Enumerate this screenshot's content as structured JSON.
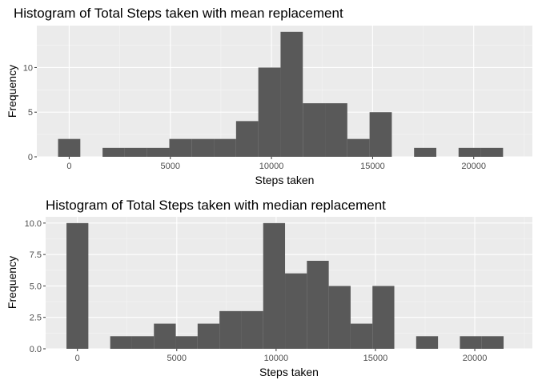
{
  "colors": {
    "panel": "#ebebeb",
    "grid_major": "#ffffff",
    "grid_minor": "#f5f5f5",
    "bar": "#595959",
    "tick": "#333333"
  },
  "chart_data": [
    {
      "type": "bar",
      "title": "Histogram of Total Steps taken with mean replacement",
      "xlabel": "Steps taken",
      "ylabel": "Frequency",
      "xlim": [
        -1600,
        22900
      ],
      "ylim": [
        0,
        14.7
      ],
      "x_ticks": [
        0,
        5000,
        10000,
        15000,
        20000
      ],
      "x_tick_labels": [
        "0",
        "5000",
        "10000",
        "15000",
        "20000"
      ],
      "y_ticks": [
        0,
        5,
        10
      ],
      "y_tick_labels": [
        "0",
        "5",
        "10"
      ],
      "grid": true,
      "bins": [
        {
          "from": -550,
          "to": 550,
          "count": 2
        },
        {
          "from": 1650,
          "to": 2750,
          "count": 1
        },
        {
          "from": 2750,
          "to": 3850,
          "count": 1
        },
        {
          "from": 3850,
          "to": 4950,
          "count": 1
        },
        {
          "from": 4950,
          "to": 6050,
          "count": 2
        },
        {
          "from": 6050,
          "to": 7150,
          "count": 2
        },
        {
          "from": 7150,
          "to": 8250,
          "count": 2
        },
        {
          "from": 8250,
          "to": 9350,
          "count": 4
        },
        {
          "from": 9350,
          "to": 10450,
          "count": 10
        },
        {
          "from": 10450,
          "to": 11550,
          "count": 14
        },
        {
          "from": 11550,
          "to": 12650,
          "count": 6
        },
        {
          "from": 12650,
          "to": 13750,
          "count": 6
        },
        {
          "from": 13750,
          "to": 14850,
          "count": 2
        },
        {
          "from": 14850,
          "to": 15950,
          "count": 5
        },
        {
          "from": 17050,
          "to": 18150,
          "count": 1
        },
        {
          "from": 19250,
          "to": 20350,
          "count": 1
        },
        {
          "from": 20350,
          "to": 21450,
          "count": 1
        }
      ]
    },
    {
      "type": "bar",
      "title": "Histogram of Total Steps taken with median replacement",
      "xlabel": "Steps taken",
      "ylabel": "Frequency",
      "xlim": [
        -1600,
        22900
      ],
      "ylim": [
        0,
        10.5
      ],
      "x_ticks": [
        0,
        5000,
        10000,
        15000,
        20000
      ],
      "x_tick_labels": [
        "0",
        "5000",
        "10000",
        "15000",
        "20000"
      ],
      "y_ticks": [
        0,
        2.5,
        5,
        7.5,
        10
      ],
      "y_tick_labels": [
        "0.0",
        "2.5",
        "5.0",
        "7.5",
        "10.0"
      ],
      "grid": true,
      "bins": [
        {
          "from": -550,
          "to": 550,
          "count": 10
        },
        {
          "from": 1650,
          "to": 2750,
          "count": 1
        },
        {
          "from": 2750,
          "to": 3850,
          "count": 1
        },
        {
          "from": 3850,
          "to": 4950,
          "count": 2
        },
        {
          "from": 4950,
          "to": 6050,
          "count": 1
        },
        {
          "from": 6050,
          "to": 7150,
          "count": 2
        },
        {
          "from": 7150,
          "to": 8250,
          "count": 3
        },
        {
          "from": 8250,
          "to": 9350,
          "count": 3
        },
        {
          "from": 9350,
          "to": 10450,
          "count": 10
        },
        {
          "from": 10450,
          "to": 11550,
          "count": 6
        },
        {
          "from": 11550,
          "to": 12650,
          "count": 7
        },
        {
          "from": 12650,
          "to": 13750,
          "count": 5
        },
        {
          "from": 13750,
          "to": 14850,
          "count": 2
        },
        {
          "from": 14850,
          "to": 15950,
          "count": 5
        },
        {
          "from": 17050,
          "to": 18150,
          "count": 1
        },
        {
          "from": 19250,
          "to": 20350,
          "count": 1
        },
        {
          "from": 20350,
          "to": 21450,
          "count": 1
        }
      ]
    }
  ]
}
